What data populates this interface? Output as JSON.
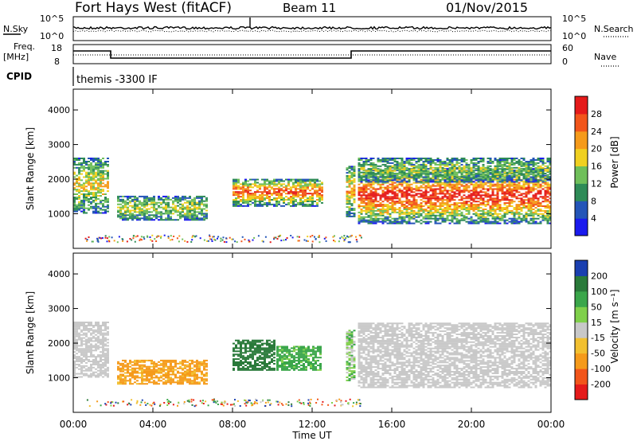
{
  "header": {
    "station": "Fort Hays West (fitACF)",
    "beam": "Beam 11",
    "date": "01/Nov/2015"
  },
  "top_panels": {
    "nsky_label": "N.Sky",
    "nsky_ticks": [
      "10^5",
      "10^0"
    ],
    "nsearch_label": "N.Search",
    "nsearch_ticks": [
      "10^5",
      "10^0"
    ],
    "freq_label_1": "Freq.",
    "freq_label_2": "[MHz]",
    "freq_ticks": [
      "18",
      "8"
    ],
    "nave_label": "Nave",
    "nave_ticks": [
      "60",
      "0"
    ],
    "cpid_label": "CPID",
    "cpid_text": "themis -3300 IF"
  },
  "chart_data": [
    {
      "type": "heatmap",
      "name": "power",
      "ylabel": "Slant Range [km]",
      "ylim": [
        0,
        4600
      ],
      "yticks": [
        "1000",
        "2000",
        "3000",
        "4000"
      ],
      "xlim": [
        "00:00",
        "24:00"
      ],
      "colorbar_label": "Power [dB]",
      "colorbar_ticks": [
        "4",
        "8",
        "12",
        "16",
        "20",
        "24",
        "28"
      ],
      "colorscale": [
        "#1a1aee",
        "#2455b8",
        "#2e8b57",
        "#6fbf5a",
        "#f0d020",
        "#f59a1a",
        "#f2551a",
        "#e51a1a"
      ],
      "regions": [
        {
          "t0": 0.0,
          "t1": 1.8,
          "r0": 1000,
          "r1": 2600,
          "level": 0.45
        },
        {
          "t0": 2.2,
          "t1": 6.8,
          "r0": 800,
          "r1": 1500,
          "level": 0.35
        },
        {
          "t0": 8.0,
          "t1": 12.5,
          "r0": 1200,
          "r1": 2000,
          "level": 0.75
        },
        {
          "t0": 13.7,
          "t1": 14.2,
          "r0": 900,
          "r1": 2400,
          "level": 0.55
        },
        {
          "t0": 14.3,
          "t1": 24.0,
          "r0": 700,
          "r1": 2300,
          "level": 0.85
        },
        {
          "t0": 14.3,
          "t1": 24.0,
          "r0": 1900,
          "r1": 2600,
          "level": 0.3
        }
      ]
    },
    {
      "type": "heatmap",
      "name": "velocity",
      "ylabel": "Slant Range [km]",
      "ylim": [
        0,
        4600
      ],
      "yticks": [
        "1000",
        "2000",
        "3000",
        "4000"
      ],
      "xlim": [
        "00:00",
        "24:00"
      ],
      "xticks": [
        "00:00",
        "04:00",
        "08:00",
        "12:00",
        "16:00",
        "20:00",
        "00:00"
      ],
      "xlabel": "Time UT",
      "colorbar_label": "Velocity [m s⁻¹]",
      "colorbar_ticks": [
        "200",
        "100",
        "50",
        "15",
        "-15",
        "-50",
        "-100",
        "-200"
      ],
      "colorscale": [
        "#1a3fb0",
        "#2a7a3a",
        "#3aa64a",
        "#7fd04a",
        "#c8c8c8",
        "#f2c030",
        "#f59a1a",
        "#f2551a",
        "#e51a1a"
      ],
      "regions": [
        {
          "t0": 0.0,
          "t1": 1.8,
          "r0": 1000,
          "r1": 2600,
          "vel": 0
        },
        {
          "t0": 2.2,
          "t1": 6.8,
          "r0": 800,
          "r1": 1500,
          "vel": -60
        },
        {
          "t0": 8.0,
          "t1": 10.2,
          "r0": 1200,
          "r1": 2100,
          "vel": 120
        },
        {
          "t0": 10.2,
          "t1": 12.5,
          "r0": 1200,
          "r1": 1900,
          "vel": 40
        },
        {
          "t0": 13.7,
          "t1": 14.2,
          "r0": 900,
          "r1": 2400,
          "vel": 20
        },
        {
          "t0": 14.3,
          "t1": 24.0,
          "r0": 700,
          "r1": 2600,
          "vel": 0
        }
      ]
    }
  ]
}
